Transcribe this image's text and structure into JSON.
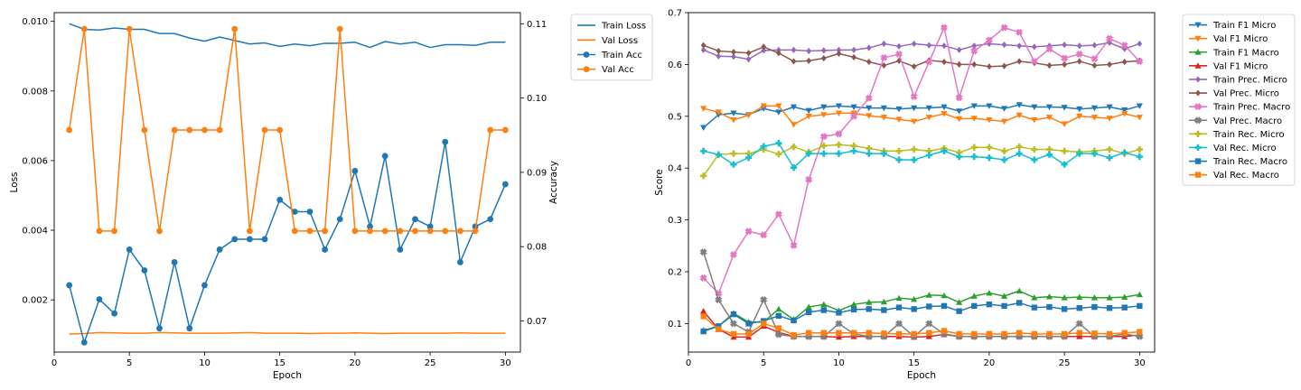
{
  "chart_data": [
    {
      "type": "line",
      "xlabel": "Epoch",
      "ylabel_left": "Loss",
      "ylabel_right": "Accuracy",
      "x": [
        1,
        2,
        3,
        4,
        5,
        6,
        7,
        8,
        9,
        10,
        11,
        12,
        13,
        14,
        15,
        16,
        17,
        18,
        19,
        20,
        21,
        22,
        23,
        24,
        25,
        26,
        27,
        28,
        29,
        30
      ],
      "xlim": [
        0,
        31
      ],
      "ylim_left": [
        0.0005,
        0.01025
      ],
      "ylim_right": [
        0.0658,
        0.1115
      ],
      "xticks": [
        0,
        5,
        10,
        15,
        20,
        25,
        30
      ],
      "yticks_left": [
        0.002,
        0.004,
        0.006,
        0.008,
        0.01
      ],
      "yticks_left_labels": [
        "0.002",
        "0.004",
        "0.006",
        "0.008",
        "0.010"
      ],
      "yticks_right": [
        0.07,
        0.08,
        0.09,
        0.1,
        0.11
      ],
      "yticks_right_labels": [
        "0.07",
        "0.08",
        "0.09",
        "0.10",
        "0.11"
      ],
      "legend_placement": "outside-right",
      "series": [
        {
          "name": "Train Loss",
          "axis": "left",
          "color": "#1f77b4",
          "marker": "none",
          "values": [
            0.00993,
            0.00977,
            0.00975,
            0.00981,
            0.00977,
            0.00977,
            0.00965,
            0.00965,
            0.00952,
            0.00943,
            0.00955,
            0.00945,
            0.00935,
            0.00938,
            0.00928,
            0.00935,
            0.0093,
            0.00937,
            0.00937,
            0.0094,
            0.00925,
            0.00942,
            0.00935,
            0.0094,
            0.00925,
            0.00933,
            0.00933,
            0.00931,
            0.0094,
            0.0094
          ]
        },
        {
          "name": "Val Loss",
          "axis": "left",
          "color": "#ff7f0e",
          "marker": "none",
          "values": [
            0.00102,
            0.00103,
            0.00106,
            0.00105,
            0.00104,
            0.00104,
            0.00106,
            0.00105,
            0.00104,
            0.00104,
            0.00104,
            0.00105,
            0.00106,
            0.00104,
            0.00104,
            0.00104,
            0.00103,
            0.00104,
            0.00104,
            0.00105,
            0.00104,
            0.00103,
            0.00104,
            0.00104,
            0.00104,
            0.00104,
            0.00105,
            0.00104,
            0.00104,
            0.00104
          ]
        },
        {
          "name": "Train Acc",
          "axis": "right",
          "color": "#1f77b4",
          "marker": "circle",
          "values": [
            0.0748,
            0.0671,
            0.0729,
            0.071,
            0.0796,
            0.0768,
            0.069,
            0.0779,
            0.069,
            0.0748,
            0.0796,
            0.081,
            0.081,
            0.081,
            0.0863,
            0.0847,
            0.0847,
            0.0796,
            0.0837,
            0.0902,
            0.0827,
            0.0922,
            0.0796,
            0.0837,
            0.0827,
            0.0941,
            0.0779,
            0.0827,
            0.0837,
            0.0884
          ]
        },
        {
          "name": "Val Acc",
          "axis": "right",
          "color": "#ff7f0e",
          "marker": "circle",
          "values": [
            0.0957,
            0.1093,
            0.0821,
            0.0821,
            0.1093,
            0.0957,
            0.0821,
            0.0957,
            0.0957,
            0.0957,
            0.0957,
            0.1093,
            0.0821,
            0.0957,
            0.0957,
            0.0821,
            0.0821,
            0.0821,
            0.1093,
            0.0821,
            0.0821,
            0.0821,
            0.0821,
            0.0821,
            0.0821,
            0.0821,
            0.0821,
            0.0821,
            0.0957,
            0.0957
          ]
        }
      ]
    },
    {
      "type": "line",
      "xlabel": "Epoch",
      "ylabel": "Score",
      "x": [
        1,
        2,
        3,
        4,
        5,
        6,
        7,
        8,
        9,
        10,
        11,
        12,
        13,
        14,
        15,
        16,
        17,
        18,
        19,
        20,
        21,
        22,
        23,
        24,
        25,
        26,
        27,
        28,
        29,
        30
      ],
      "xlim": [
        0,
        31
      ],
      "ylim": [
        0.045,
        0.7
      ],
      "xticks": [
        0,
        5,
        10,
        15,
        20,
        25,
        30
      ],
      "yticks": [
        0.1,
        0.2,
        0.3,
        0.4,
        0.5,
        0.6,
        0.7
      ],
      "yticks_labels": [
        "0.1",
        "0.2",
        "0.3",
        "0.4",
        "0.5",
        "0.6",
        "0.7"
      ],
      "legend_placement": "outside-right",
      "series": [
        {
          "name": "Train F1 Micro",
          "color": "#1f77b4",
          "marker": "triangle_down",
          "values": [
            0.478,
            0.503,
            0.506,
            0.503,
            0.515,
            0.508,
            0.518,
            0.511,
            0.518,
            0.52,
            0.518,
            0.516,
            0.516,
            0.514,
            0.516,
            0.516,
            0.518,
            0.51,
            0.52,
            0.52,
            0.515,
            0.522,
            0.518,
            0.518,
            0.517,
            0.514,
            0.516,
            0.518,
            0.512,
            0.52
          ]
        },
        {
          "name": "Val F1 Micro",
          "color": "#ff7f0e",
          "marker": "triangle_down",
          "values": [
            0.515,
            0.508,
            0.493,
            0.502,
            0.52,
            0.52,
            0.484,
            0.5,
            0.503,
            0.506,
            0.506,
            0.501,
            0.498,
            0.494,
            0.49,
            0.498,
            0.505,
            0.495,
            0.496,
            0.493,
            0.49,
            0.502,
            0.493,
            0.498,
            0.485,
            0.5,
            0.498,
            0.496,
            0.505,
            0.498
          ]
        },
        {
          "name": "Train F1 Macro",
          "color": "#2ca02c",
          "marker": "triangle_up",
          "values": [
            0.087,
            0.095,
            0.12,
            0.103,
            0.103,
            0.128,
            0.108,
            0.132,
            0.137,
            0.125,
            0.137,
            0.141,
            0.142,
            0.149,
            0.147,
            0.155,
            0.154,
            0.141,
            0.153,
            0.159,
            0.153,
            0.163,
            0.15,
            0.152,
            0.15,
            0.151,
            0.15,
            0.15,
            0.151,
            0.156
          ]
        },
        {
          "name": "Val F1 Micro",
          "color": "#d62728",
          "marker": "triangle_up",
          "values": [
            0.124,
            0.089,
            0.074,
            0.074,
            0.095,
            0.083,
            0.075,
            0.075,
            0.075,
            0.074,
            0.075,
            0.075,
            0.075,
            0.075,
            0.074,
            0.075,
            0.079,
            0.075,
            0.075,
            0.075,
            0.075,
            0.075,
            0.075,
            0.075,
            0.075,
            0.075,
            0.075,
            0.075,
            0.075,
            0.078
          ]
        },
        {
          "name": "Train Prec. Micro",
          "color": "#9467bd",
          "marker": "diamond",
          "values": [
            0.628,
            0.616,
            0.615,
            0.61,
            0.627,
            0.628,
            0.628,
            0.626,
            0.627,
            0.628,
            0.628,
            0.632,
            0.64,
            0.635,
            0.64,
            0.637,
            0.636,
            0.628,
            0.636,
            0.64,
            0.638,
            0.636,
            0.634,
            0.636,
            0.638,
            0.636,
            0.637,
            0.642,
            0.63,
            0.64
          ]
        },
        {
          "name": "Val Prec. Micro",
          "color": "#8c564b",
          "marker": "diamond",
          "values": [
            0.637,
            0.626,
            0.624,
            0.622,
            0.634,
            0.622,
            0.606,
            0.607,
            0.612,
            0.621,
            0.614,
            0.605,
            0.598,
            0.607,
            0.596,
            0.608,
            0.605,
            0.6,
            0.6,
            0.596,
            0.597,
            0.606,
            0.603,
            0.598,
            0.6,
            0.606,
            0.598,
            0.6,
            0.605,
            0.607
          ]
        },
        {
          "name": "Train Prec. Macro",
          "color": "#e377c2",
          "marker": "x",
          "values": [
            0.188,
            0.158,
            0.233,
            0.278,
            0.271,
            0.311,
            0.251,
            0.378,
            0.461,
            0.466,
            0.5,
            0.535,
            0.613,
            0.62,
            0.538,
            0.605,
            0.671,
            0.536,
            0.626,
            0.647,
            0.671,
            0.662,
            0.606,
            0.63,
            0.612,
            0.62,
            0.611,
            0.65,
            0.637,
            0.606
          ]
        },
        {
          "name": "Val Prec. Macro",
          "color": "#7f7f7f",
          "marker": "x",
          "values": [
            0.238,
            0.146,
            0.1,
            0.084,
            0.146,
            0.079,
            0.075,
            0.075,
            0.075,
            0.1,
            0.08,
            0.075,
            0.075,
            0.1,
            0.075,
            0.1,
            0.08,
            0.075,
            0.075,
            0.075,
            0.075,
            0.075,
            0.075,
            0.075,
            0.075,
            0.1,
            0.075,
            0.075,
            0.08,
            0.075
          ]
        },
        {
          "name": "Train Rec. Micro",
          "color": "#bcbd22",
          "marker": "plus",
          "values": [
            0.385,
            0.426,
            0.428,
            0.428,
            0.436,
            0.427,
            0.441,
            0.431,
            0.443,
            0.445,
            0.443,
            0.438,
            0.433,
            0.433,
            0.436,
            0.433,
            0.438,
            0.43,
            0.44,
            0.44,
            0.433,
            0.441,
            0.436,
            0.436,
            0.433,
            0.431,
            0.433,
            0.436,
            0.428,
            0.436
          ]
        },
        {
          "name": "Val Rec. Micro",
          "color": "#17becf",
          "marker": "plus",
          "values": [
            0.433,
            0.426,
            0.407,
            0.42,
            0.442,
            0.448,
            0.401,
            0.428,
            0.428,
            0.428,
            0.433,
            0.428,
            0.428,
            0.416,
            0.416,
            0.425,
            0.433,
            0.422,
            0.422,
            0.42,
            0.416,
            0.428,
            0.416,
            0.426,
            0.407,
            0.428,
            0.428,
            0.42,
            0.43,
            0.422
          ]
        },
        {
          "name": "Train Rec. Macro",
          "color": "#1f77b4",
          "marker": "square",
          "values": [
            0.085,
            0.095,
            0.118,
            0.1,
            0.105,
            0.115,
            0.106,
            0.122,
            0.126,
            0.121,
            0.127,
            0.128,
            0.126,
            0.131,
            0.128,
            0.133,
            0.134,
            0.124,
            0.134,
            0.137,
            0.134,
            0.14,
            0.131,
            0.132,
            0.128,
            0.13,
            0.132,
            0.13,
            0.131,
            0.134
          ]
        },
        {
          "name": "Val Rec. Macro",
          "color": "#ff7f0e",
          "marker": "square",
          "values": [
            0.114,
            0.089,
            0.08,
            0.08,
            0.1,
            0.091,
            0.078,
            0.082,
            0.082,
            0.082,
            0.082,
            0.082,
            0.081,
            0.08,
            0.08,
            0.082,
            0.086,
            0.08,
            0.08,
            0.08,
            0.08,
            0.082,
            0.08,
            0.08,
            0.08,
            0.082,
            0.081,
            0.08,
            0.082,
            0.084
          ]
        }
      ]
    }
  ]
}
